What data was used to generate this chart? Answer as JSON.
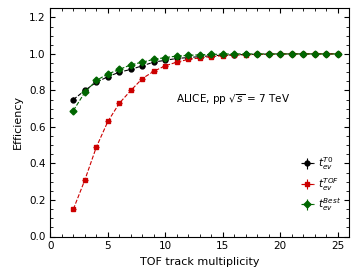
{
  "title": "ALICE, pp $\\sqrt{s}$ = 7 TeV",
  "xlabel": "TOF track multiplicity",
  "ylabel": "Efficiency",
  "xlim": [
    0,
    26
  ],
  "ylim": [
    0,
    1.25
  ],
  "yticks": [
    0,
    0.2,
    0.4,
    0.6,
    0.8,
    1.0,
    1.2
  ],
  "xticks": [
    0,
    5,
    10,
    15,
    20,
    25
  ],
  "x_T0": [
    2,
    3,
    4,
    5,
    6,
    7,
    8,
    9,
    10,
    11,
    12,
    13,
    14,
    15,
    16,
    17,
    18,
    19,
    20,
    21,
    22,
    23,
    24,
    25
  ],
  "y_T0": [
    0.75,
    0.8,
    0.845,
    0.875,
    0.9,
    0.915,
    0.935,
    0.955,
    0.965,
    0.975,
    0.98,
    0.985,
    0.99,
    0.993,
    0.995,
    0.997,
    0.998,
    0.999,
    1.0,
    1.0,
    1.0,
    1.0,
    1.0,
    1.0
  ],
  "yerr_T0": [
    0.012,
    0.01,
    0.008,
    0.007,
    0.006,
    0.006,
    0.005,
    0.005,
    0.004,
    0.004,
    0.003,
    0.003,
    0.003,
    0.002,
    0.002,
    0.002,
    0.002,
    0.001,
    0.001,
    0.001,
    0.001,
    0.001,
    0.001,
    0.001
  ],
  "x_TOF": [
    2,
    3,
    4,
    5,
    6,
    7,
    8,
    9,
    10,
    11,
    12,
    13,
    14,
    15,
    16,
    17,
    18,
    19,
    20,
    21,
    22,
    23,
    24,
    25
  ],
  "y_TOF": [
    0.15,
    0.31,
    0.49,
    0.63,
    0.73,
    0.8,
    0.865,
    0.905,
    0.935,
    0.955,
    0.97,
    0.978,
    0.985,
    0.99,
    0.993,
    0.995,
    0.997,
    0.998,
    0.999,
    1.0,
    1.0,
    1.0,
    1.0,
    1.0
  ],
  "yerr_TOF": [
    0.012,
    0.01,
    0.009,
    0.008,
    0.007,
    0.006,
    0.006,
    0.005,
    0.005,
    0.004,
    0.004,
    0.003,
    0.003,
    0.002,
    0.002,
    0.002,
    0.002,
    0.001,
    0.001,
    0.001,
    0.001,
    0.001,
    0.001,
    0.001
  ],
  "x_Best": [
    2,
    3,
    4,
    5,
    6,
    7,
    8,
    9,
    10,
    11,
    12,
    13,
    14,
    15,
    16,
    17,
    18,
    19,
    20,
    21,
    22,
    23,
    24,
    25
  ],
  "y_Best": [
    0.69,
    0.79,
    0.855,
    0.89,
    0.915,
    0.94,
    0.955,
    0.97,
    0.98,
    0.988,
    0.992,
    0.995,
    0.997,
    0.999,
    1.0,
    1.0,
    1.0,
    1.0,
    1.0,
    1.0,
    1.0,
    1.0,
    1.0,
    1.0
  ],
  "yerr_Best": [
    0.01,
    0.009,
    0.008,
    0.007,
    0.006,
    0.005,
    0.005,
    0.004,
    0.004,
    0.003,
    0.003,
    0.002,
    0.002,
    0.002,
    0.001,
    0.001,
    0.001,
    0.001,
    0.001,
    0.001,
    0.001,
    0.001,
    0.001,
    0.001
  ],
  "xerr": 0.25,
  "color_T0": "#000000",
  "color_TOF": "#cc0000",
  "color_Best": "#006600",
  "legend_T0": "$t_{ev}^{T0}$",
  "legend_TOF": "$t_{ev}^{TOF}$",
  "legend_Best": "$t_{ev}^{Best}$",
  "background_color": "#ffffff"
}
